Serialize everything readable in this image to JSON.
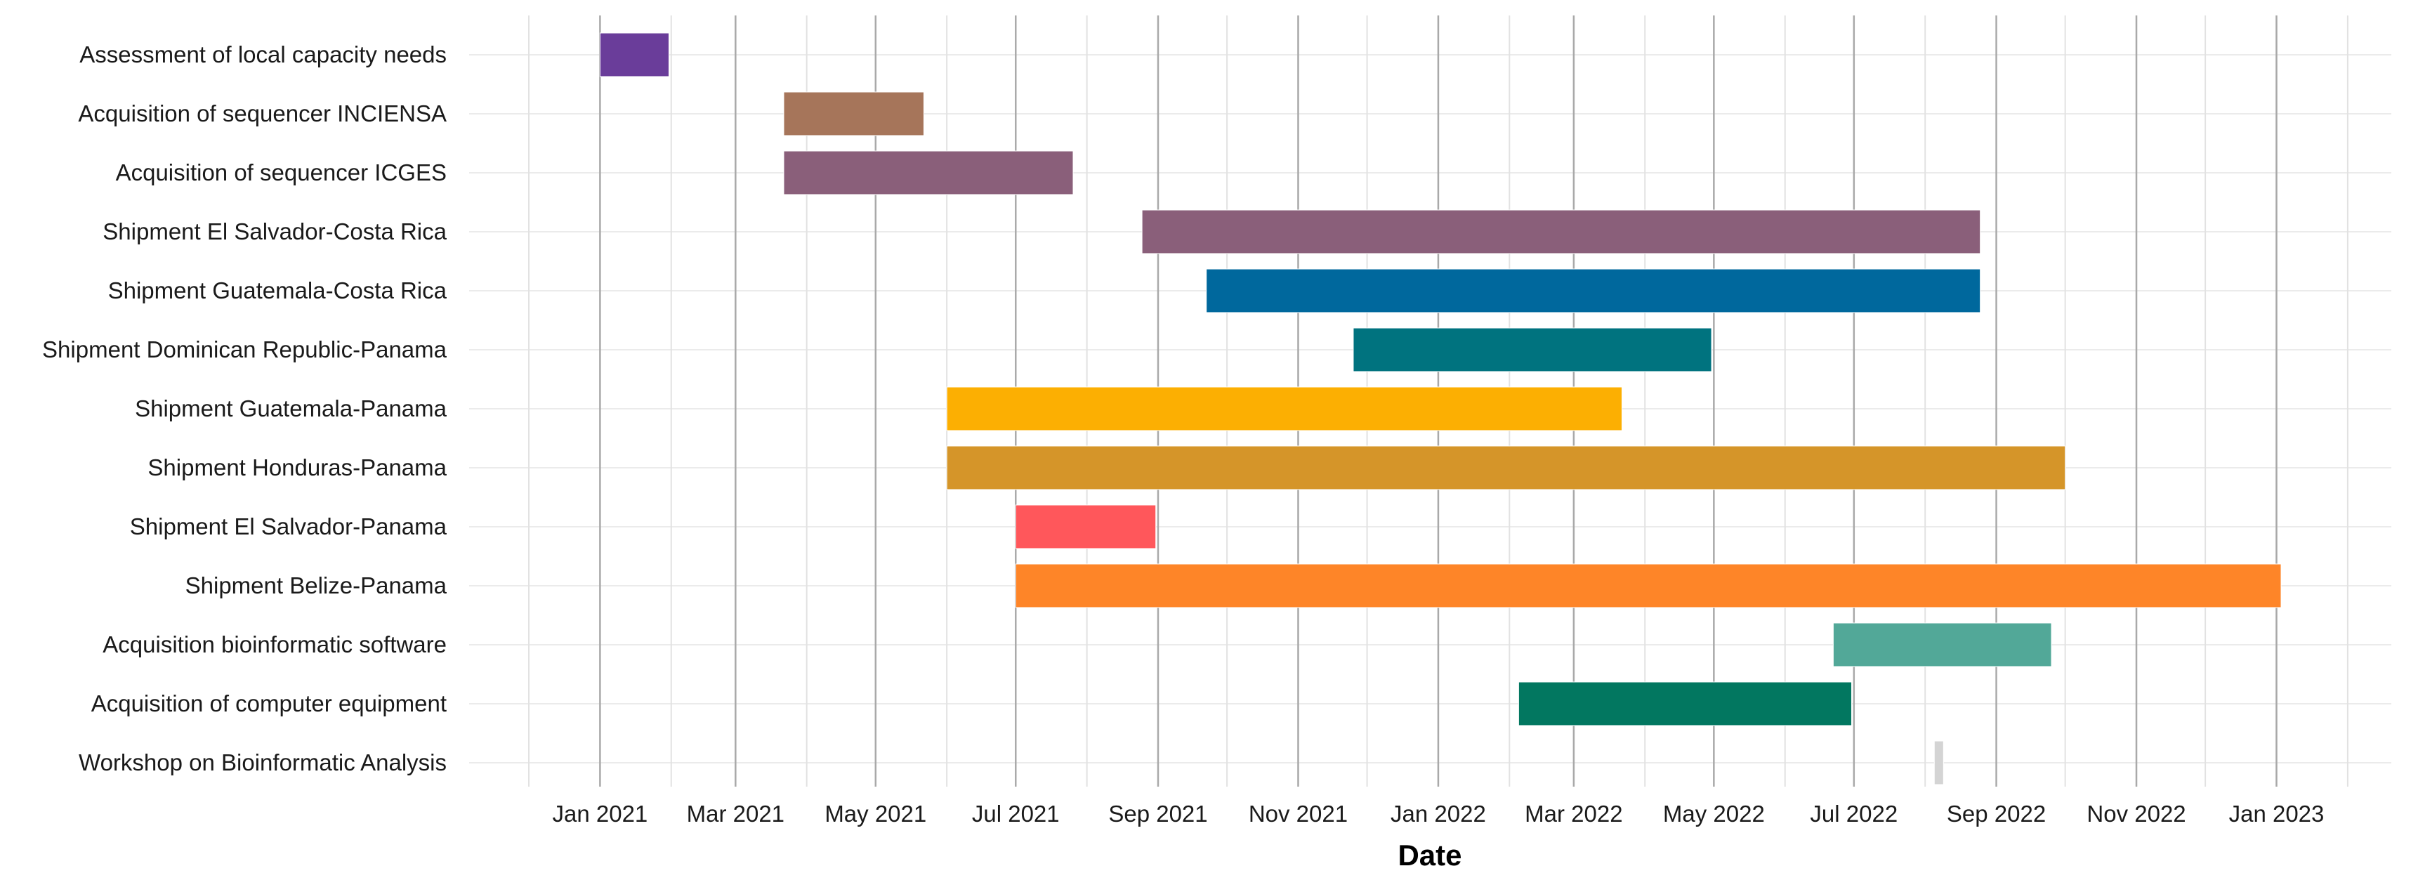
{
  "chart_data": {
    "type": "gantt",
    "xlabel": "Date",
    "ylabel": "",
    "title": "",
    "grid": true,
    "legend": "none",
    "x_domain": [
      "2020-11-05",
      "2023-02-20"
    ],
    "x_ticks": [
      {
        "date": "2021-01-01",
        "label": "Jan 2021"
      },
      {
        "date": "2021-03-01",
        "label": "Mar 2021"
      },
      {
        "date": "2021-05-01",
        "label": "May 2021"
      },
      {
        "date": "2021-07-01",
        "label": "Jul 2021"
      },
      {
        "date": "2021-09-01",
        "label": "Sep 2021"
      },
      {
        "date": "2021-11-01",
        "label": "Nov 2021"
      },
      {
        "date": "2022-01-01",
        "label": "Jan 2022"
      },
      {
        "date": "2022-03-01",
        "label": "Mar 2022"
      },
      {
        "date": "2022-05-01",
        "label": "May 2022"
      },
      {
        "date": "2022-07-01",
        "label": "Jul 2022"
      },
      {
        "date": "2022-09-01",
        "label": "Sep 2022"
      },
      {
        "date": "2022-11-01",
        "label": "Nov 2022"
      },
      {
        "date": "2023-01-01",
        "label": "Jan 2023"
      }
    ],
    "minor_ticks": [
      "2020-12-01",
      "2021-02-01",
      "2021-04-01",
      "2021-06-01",
      "2021-08-01",
      "2021-10-01",
      "2021-12-01",
      "2022-02-01",
      "2022-04-01",
      "2022-06-01",
      "2022-08-01",
      "2022-10-01",
      "2022-12-01",
      "2023-02-01"
    ],
    "tasks": [
      {
        "name": "Assessment of local capacity needs",
        "start": "2021-01-01",
        "end": "2021-01-31",
        "color": "#6a3d9a"
      },
      {
        "name": "Acquisition of sequencer INCIENSA",
        "start": "2021-03-22",
        "end": "2021-05-22",
        "color": "#a6755a"
      },
      {
        "name": "Acquisition of sequencer ICGES",
        "start": "2021-03-22",
        "end": "2021-07-26",
        "color": "#8a5f7a"
      },
      {
        "name": "Shipment El Salvador-Costa Rica",
        "start": "2021-08-25",
        "end": "2022-08-25",
        "color": "#8a5f7a"
      },
      {
        "name": "Shipment Guatemala-Costa Rica",
        "start": "2021-09-22",
        "end": "2022-08-25",
        "color": "#00689d"
      },
      {
        "name": "Shipment Dominican Republic-Panama",
        "start": "2021-11-25",
        "end": "2022-04-30",
        "color": "#00737f"
      },
      {
        "name": "Shipment Guatemala-Panama",
        "start": "2021-06-01",
        "end": "2022-03-22",
        "color": "#fcaf02"
      },
      {
        "name": "Shipment Honduras-Panama",
        "start": "2021-06-01",
        "end": "2022-10-01",
        "color": "#d59529"
      },
      {
        "name": "Shipment El Salvador-Panama",
        "start": "2021-07-01",
        "end": "2021-08-31",
        "color": "#ff575b"
      },
      {
        "name": "Shipment Belize-Panama",
        "start": "2021-07-01",
        "end": "2023-01-03",
        "color": "#fe8528"
      },
      {
        "name": "Acquisition bioinformatic software",
        "start": "2022-06-22",
        "end": "2022-09-25",
        "color": "#52a898"
      },
      {
        "name": "Acquisition of computer equipment",
        "start": "2022-02-05",
        "end": "2022-06-30",
        "color": "#027760"
      },
      {
        "name": "Workshop on Bioinformatic Analysis",
        "start": "2022-08-05",
        "end": "2022-08-09",
        "color": "#d4d4d4"
      }
    ]
  }
}
